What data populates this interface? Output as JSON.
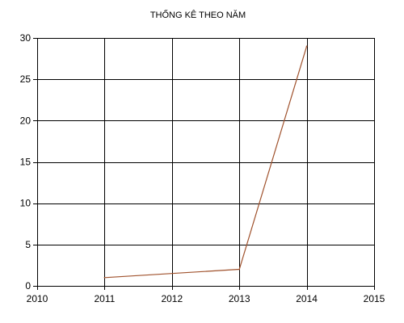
{
  "chart_data": {
    "type": "line",
    "title": "THỐNG KÊ THEO NĂM",
    "xlabel": "",
    "ylabel": "",
    "xlim": [
      2010,
      2015
    ],
    "ylim": [
      0,
      30
    ],
    "x_ticks": [
      2010,
      2011,
      2012,
      2013,
      2014,
      2015
    ],
    "y_ticks": [
      0,
      5,
      10,
      15,
      20,
      25,
      30
    ],
    "grid": true,
    "legend": "none",
    "series": [
      {
        "x": [
          2011,
          2013,
          2014
        ],
        "y": [
          1,
          2,
          29
        ],
        "color": "#a0522d"
      }
    ]
  }
}
